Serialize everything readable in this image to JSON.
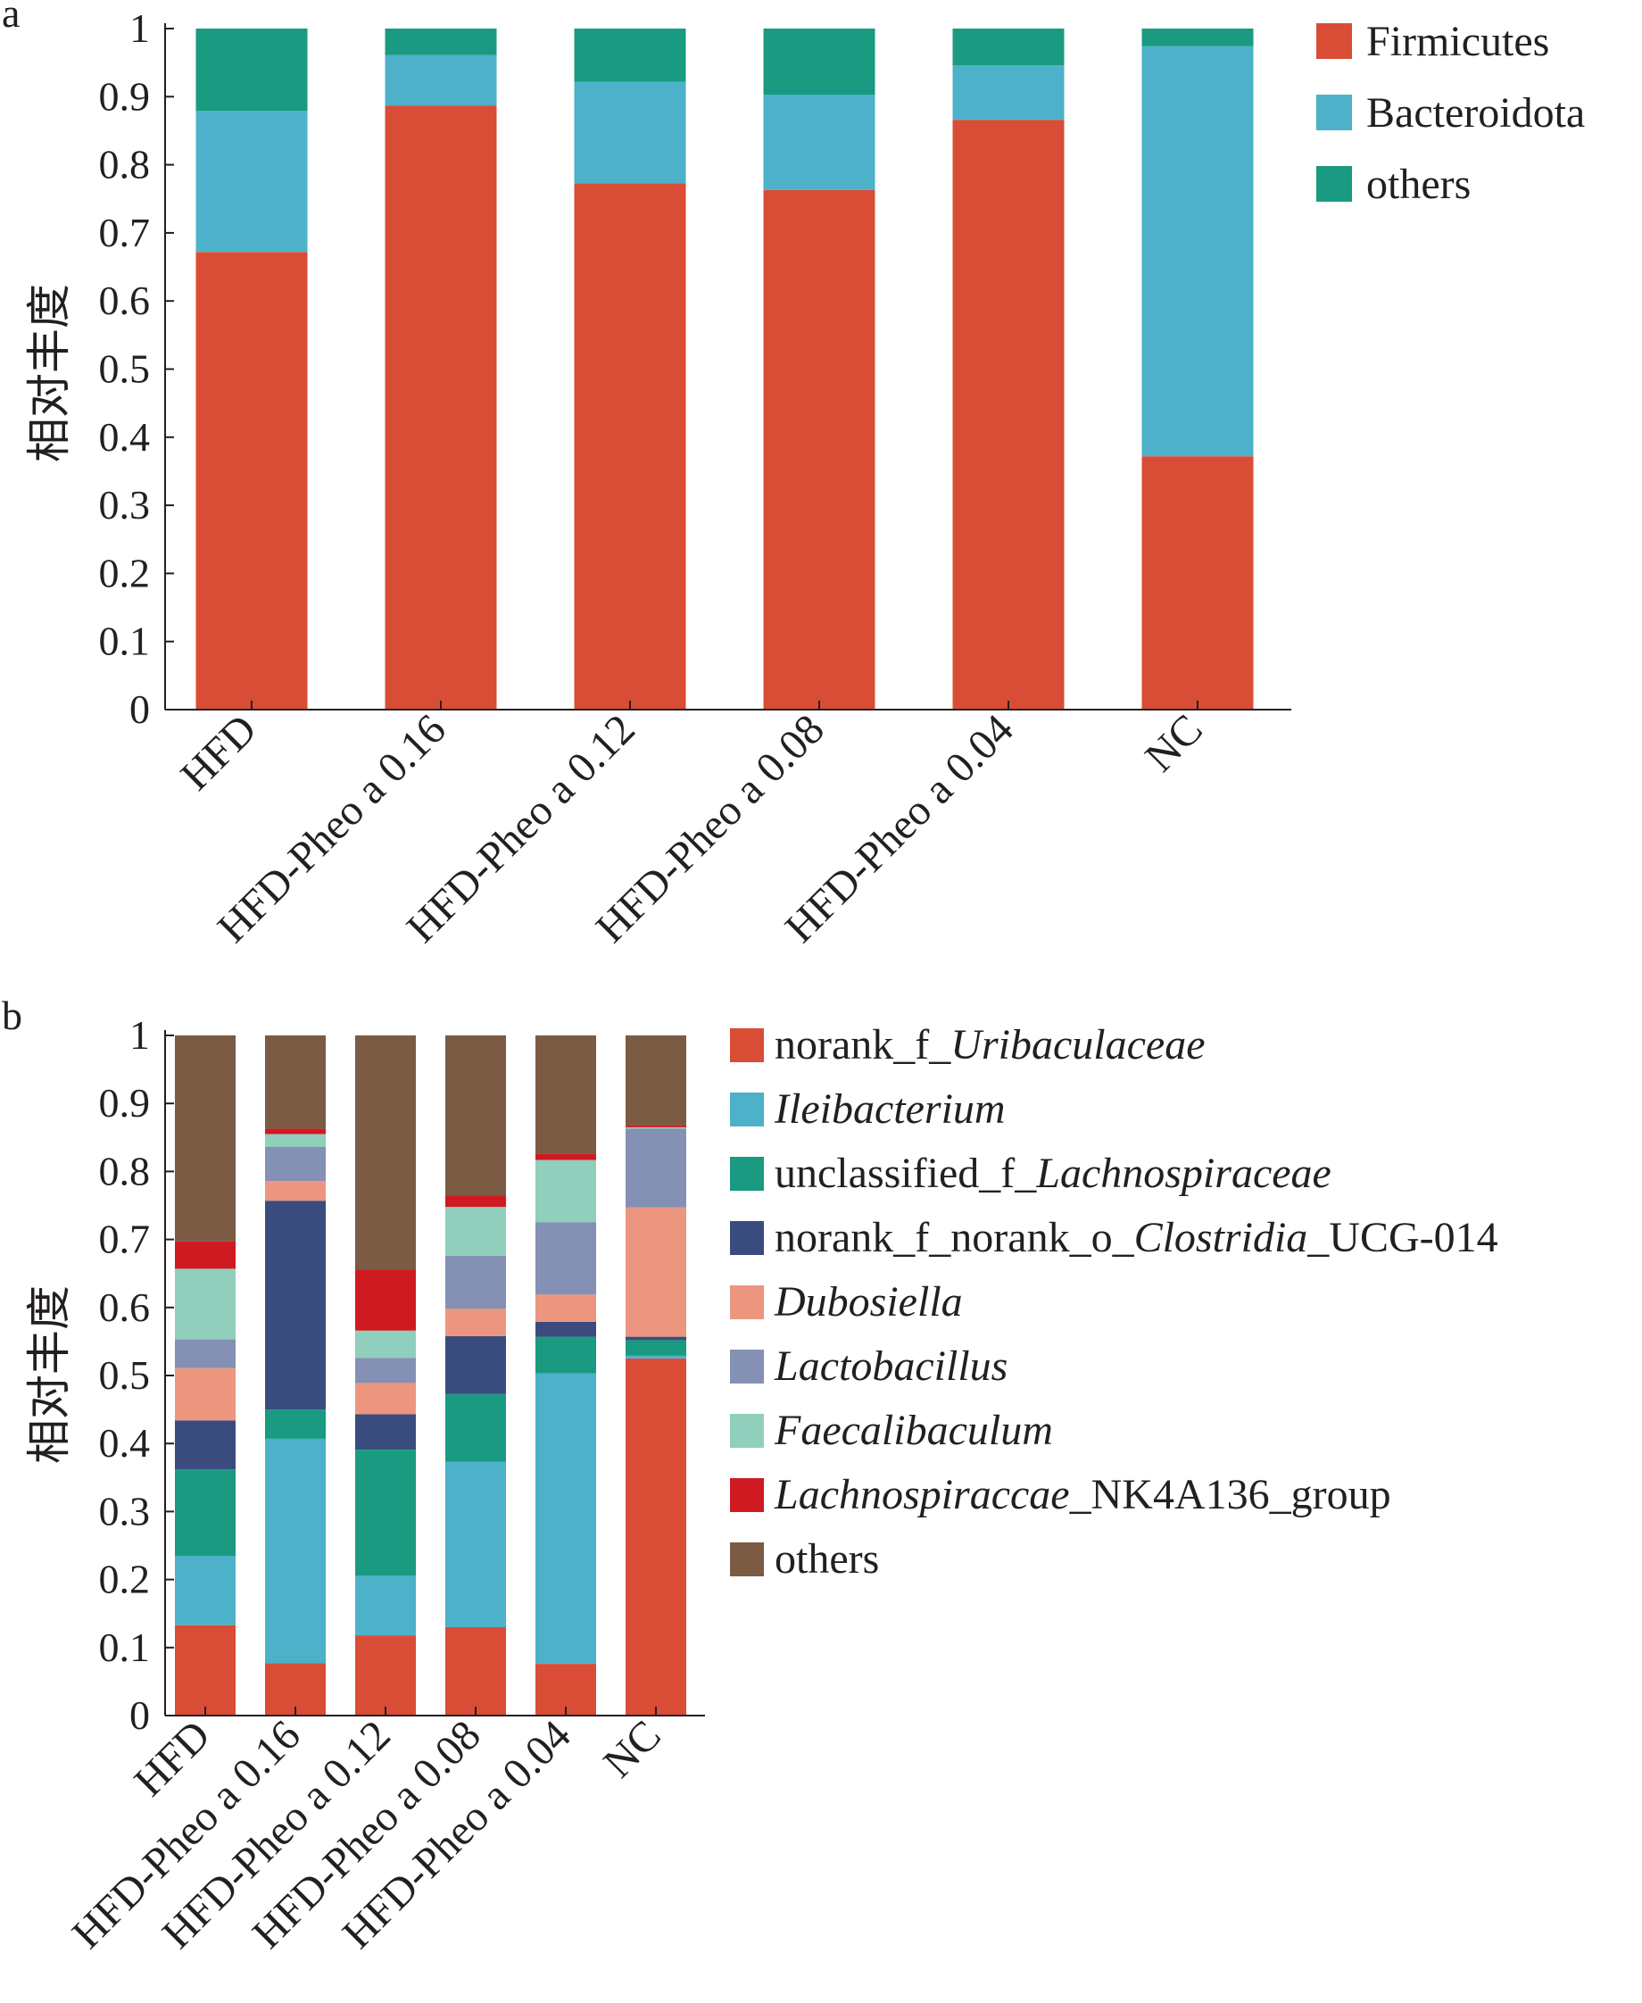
{
  "chart_data": [
    {
      "type": "bar",
      "panel_label": "a",
      "ylabel": "相对丰度",
      "ylim": [
        0,
        1
      ],
      "yticks": [
        "0",
        "0.1",
        "0.2",
        "0.3",
        "0.4",
        "0.5",
        "0.6",
        "0.7",
        "0.8",
        "0.9",
        "1"
      ],
      "categories": [
        "HFD",
        "HFD-Pheo a 0.16",
        "HFD-Pheo a 0.12",
        "HFD-Pheo a 0.08",
        "HFD-Pheo a 0.04",
        "NC"
      ],
      "stacked": true,
      "series": [
        {
          "name": "Firmicutes",
          "color": "#d94c35",
          "values": [
            0.672,
            0.887,
            0.773,
            0.763,
            0.866,
            0.372
          ]
        },
        {
          "name": "Bacteroidota",
          "color": "#4cb1c9",
          "values": [
            0.207,
            0.074,
            0.149,
            0.14,
            0.08,
            0.602
          ]
        },
        {
          "name": "others",
          "color": "#1a9a80",
          "values": [
            0.121,
            0.039,
            0.078,
            0.097,
            0.054,
            0.026
          ]
        }
      ]
    },
    {
      "type": "bar",
      "panel_label": "b",
      "ylabel": "相对丰度",
      "ylim": [
        0,
        1
      ],
      "yticks": [
        "0",
        "0.1",
        "0.2",
        "0.3",
        "0.4",
        "0.5",
        "0.6",
        "0.7",
        "0.8",
        "0.9",
        "1"
      ],
      "categories": [
        "HFD",
        "HFD-Pheo a 0.16",
        "HFD-Pheo a 0.12",
        "HFD-Pheo a 0.08",
        "HFD-Pheo a 0.04",
        "NC"
      ],
      "stacked": true,
      "series": [
        {
          "name": "norank_f_Uribaculaceae",
          "name_parts": [
            [
              "norank_f_",
              false
            ],
            [
              "Uribaculaceae",
              true
            ]
          ],
          "color": "#d94c35",
          "values": [
            0.133,
            0.077,
            0.118,
            0.13,
            0.076,
            0.525
          ]
        },
        {
          "name": "Ileibacterium",
          "name_parts": [
            [
              "Ileibacterium",
              true
            ]
          ],
          "color": "#4cb1c9",
          "values": [
            0.102,
            0.33,
            0.088,
            0.243,
            0.427,
            0.004
          ]
        },
        {
          "name": "unclassified_f_Lachnospiraceae",
          "name_parts": [
            [
              "unclassified_f_",
              false
            ],
            [
              "Lachnospiraceae",
              true
            ]
          ],
          "color": "#1a9a80",
          "values": [
            0.127,
            0.043,
            0.185,
            0.1,
            0.054,
            0.023
          ]
        },
        {
          "name": "norank_f_norank_o_Clostridia_UCG-014",
          "name_parts": [
            [
              "norank_f_norank_o_",
              false
            ],
            [
              "Clostridia",
              true
            ],
            [
              "_UCG-014",
              false
            ]
          ],
          "color": "#3a4c7e",
          "values": [
            0.072,
            0.307,
            0.052,
            0.085,
            0.022,
            0.005
          ]
        },
        {
          "name": "Dubosiella",
          "name_parts": [
            [
              "Dubosiella",
              true
            ]
          ],
          "color": "#ec9680",
          "values": [
            0.077,
            0.029,
            0.046,
            0.04,
            0.04,
            0.19
          ]
        },
        {
          "name": "Lactobacillus",
          "name_parts": [
            [
              "Lactobacillus",
              true
            ]
          ],
          "color": "#8490b4",
          "values": [
            0.042,
            0.05,
            0.037,
            0.078,
            0.106,
            0.116
          ]
        },
        {
          "name": "Faecalibaculum",
          "name_parts": [
            [
              "Faecalibaculum",
              true
            ]
          ],
          "color": "#90cfbc",
          "values": [
            0.104,
            0.019,
            0.04,
            0.072,
            0.092,
            0.002
          ]
        },
        {
          "name": "Lachnospiraccae_NK4A136_group",
          "name_parts": [
            [
              "Lachnospiraccae",
              true
            ],
            [
              "_NK4A136_group",
              false
            ]
          ],
          "color": "#d01a22",
          "values": [
            0.04,
            0.008,
            0.09,
            0.017,
            0.009,
            0.003
          ]
        },
        {
          "name": "others",
          "name_parts": [
            [
              "others",
              false
            ]
          ],
          "color": "#7b5b44",
          "values": [
            0.303,
            0.137,
            0.344,
            0.235,
            0.174,
            0.132
          ]
        }
      ]
    }
  ]
}
